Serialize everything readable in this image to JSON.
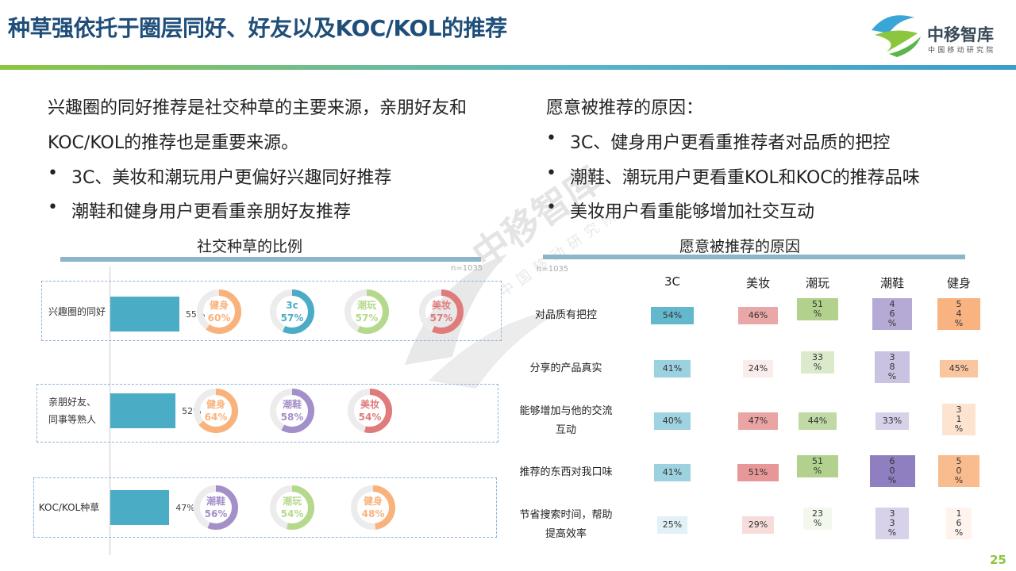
{
  "header": {
    "title": "种草强依托于圈层同好、好友以及KOC/KOL的推荐",
    "logo_name": "中移智库",
    "logo_sub": "中国移动研究院"
  },
  "left_text": {
    "line1": "兴趣圈的同好推荐是社交种草的主要来源，亲朋好友和",
    "line2": "KOC/KOL的推荐也是重要来源。",
    "bullets": [
      "3C、美妆和潮玩用户更偏好兴趣同好推荐",
      "潮鞋和健身用户更看重亲朋好友推荐"
    ]
  },
  "right_text": {
    "heading": "愿意被推荐的原因：",
    "bullets": [
      "3C、健身用户更看重推荐者对品质的把控",
      "潮鞋、潮玩用户更看重KOL和KOC的推荐品味",
      "美妆用户看重能够增加社交互动"
    ]
  },
  "chart_data": [
    {
      "type": "bar",
      "title": "社交种草的比例",
      "note": "n=1035",
      "categories": [
        "兴趣圈的同好",
        "亲朋好友、同事等熟人",
        "KOC/KOL种草"
      ],
      "category_lines": [
        [
          "兴趣圈的同好"
        ],
        [
          "亲朋好友、",
          "同事等熟人"
        ],
        [
          "KOC/KOL种草"
        ]
      ],
      "values": [
        55,
        52,
        47
      ],
      "value_labels": [
        "55%",
        "52%",
        "47%"
      ],
      "xlim": [
        0,
        100
      ],
      "top_segments": [
        [
          {
            "name": "健身",
            "value": 60,
            "label": "60%",
            "color": "#f9b27b"
          },
          {
            "name": "3c",
            "value": 57,
            "label": "57%",
            "color": "#4bacc6"
          },
          {
            "name": "潮玩",
            "value": 57,
            "label": "57%",
            "color": "#b5d98c"
          },
          {
            "name": "美妆",
            "value": 57,
            "label": "57%",
            "color": "#e07b7b"
          }
        ],
        [
          {
            "name": "健身",
            "value": 64,
            "label": "64%",
            "color": "#f9b27b"
          },
          {
            "name": "潮鞋",
            "value": 58,
            "label": "58%",
            "color": "#a38fc9"
          },
          {
            "name": "美妆",
            "value": 54,
            "label": "54%",
            "color": "#e07b7b"
          }
        ],
        [
          {
            "name": "潮鞋",
            "value": 56,
            "label": "56%",
            "color": "#a38fc9"
          },
          {
            "name": "潮玩",
            "value": 54,
            "label": "54%",
            "color": "#b5d98c"
          },
          {
            "name": "健身",
            "value": 48,
            "label": "48%",
            "color": "#f9b27b"
          }
        ]
      ]
    },
    {
      "type": "heatmap",
      "title": "愿意被推荐的原因",
      "note": "n=1035",
      "columns": [
        "3C",
        "美妆",
        "潮玩",
        "潮鞋",
        "健身"
      ],
      "rows": [
        {
          "lines": [
            "对品质有把控"
          ],
          "values": [
            54,
            46,
            51,
            46,
            54
          ],
          "labels": [
            [
              "54%"
            ],
            [
              "46%"
            ],
            [
              "51",
              "%"
            ],
            [
              "4",
              "6",
              "%"
            ],
            [
              "5",
              "4",
              "%"
            ]
          ]
        },
        {
          "lines": [
            "分享的产品真实"
          ],
          "values": [
            41,
            24,
            33,
            38,
            45
          ],
          "labels": [
            [
              "41%"
            ],
            [
              "24%"
            ],
            [
              "33",
              "%"
            ],
            [
              "3",
              "8",
              "%"
            ],
            [
              "45%"
            ]
          ]
        },
        {
          "lines": [
            "能够增加与他的交流",
            "互动"
          ],
          "values": [
            40,
            47,
            44,
            33,
            31
          ],
          "labels": [
            [
              "40%"
            ],
            [
              "47%"
            ],
            [
              "44%"
            ],
            [
              "33%"
            ],
            [
              "3",
              "1",
              "%"
            ]
          ]
        },
        {
          "lines": [
            "推荐的东西对我口味"
          ],
          "values": [
            41,
            51,
            51,
            60,
            50
          ],
          "labels": [
            [
              "41%"
            ],
            [
              "51%"
            ],
            [
              "51",
              "%"
            ],
            [
              "6",
              "0",
              "%"
            ],
            [
              "5",
              "0",
              "%"
            ]
          ]
        },
        {
          "lines": [
            "节省搜索时间，帮助",
            "提高效率"
          ],
          "values": [
            25,
            29,
            23,
            33,
            16
          ],
          "labels": [
            [
              "25%"
            ],
            [
              "29%"
            ],
            [
              "23",
              "%"
            ],
            [
              "3",
              "3",
              "%"
            ],
            [
              "1",
              "6",
              "%"
            ]
          ]
        }
      ],
      "colors": [
        "#4bacc6",
        "#e07b7b",
        "#9bc46e",
        "#8f7fc0",
        "#f7a76c"
      ]
    }
  ],
  "page_number": "25",
  "watermark": "中移智库 中国移动研究院"
}
